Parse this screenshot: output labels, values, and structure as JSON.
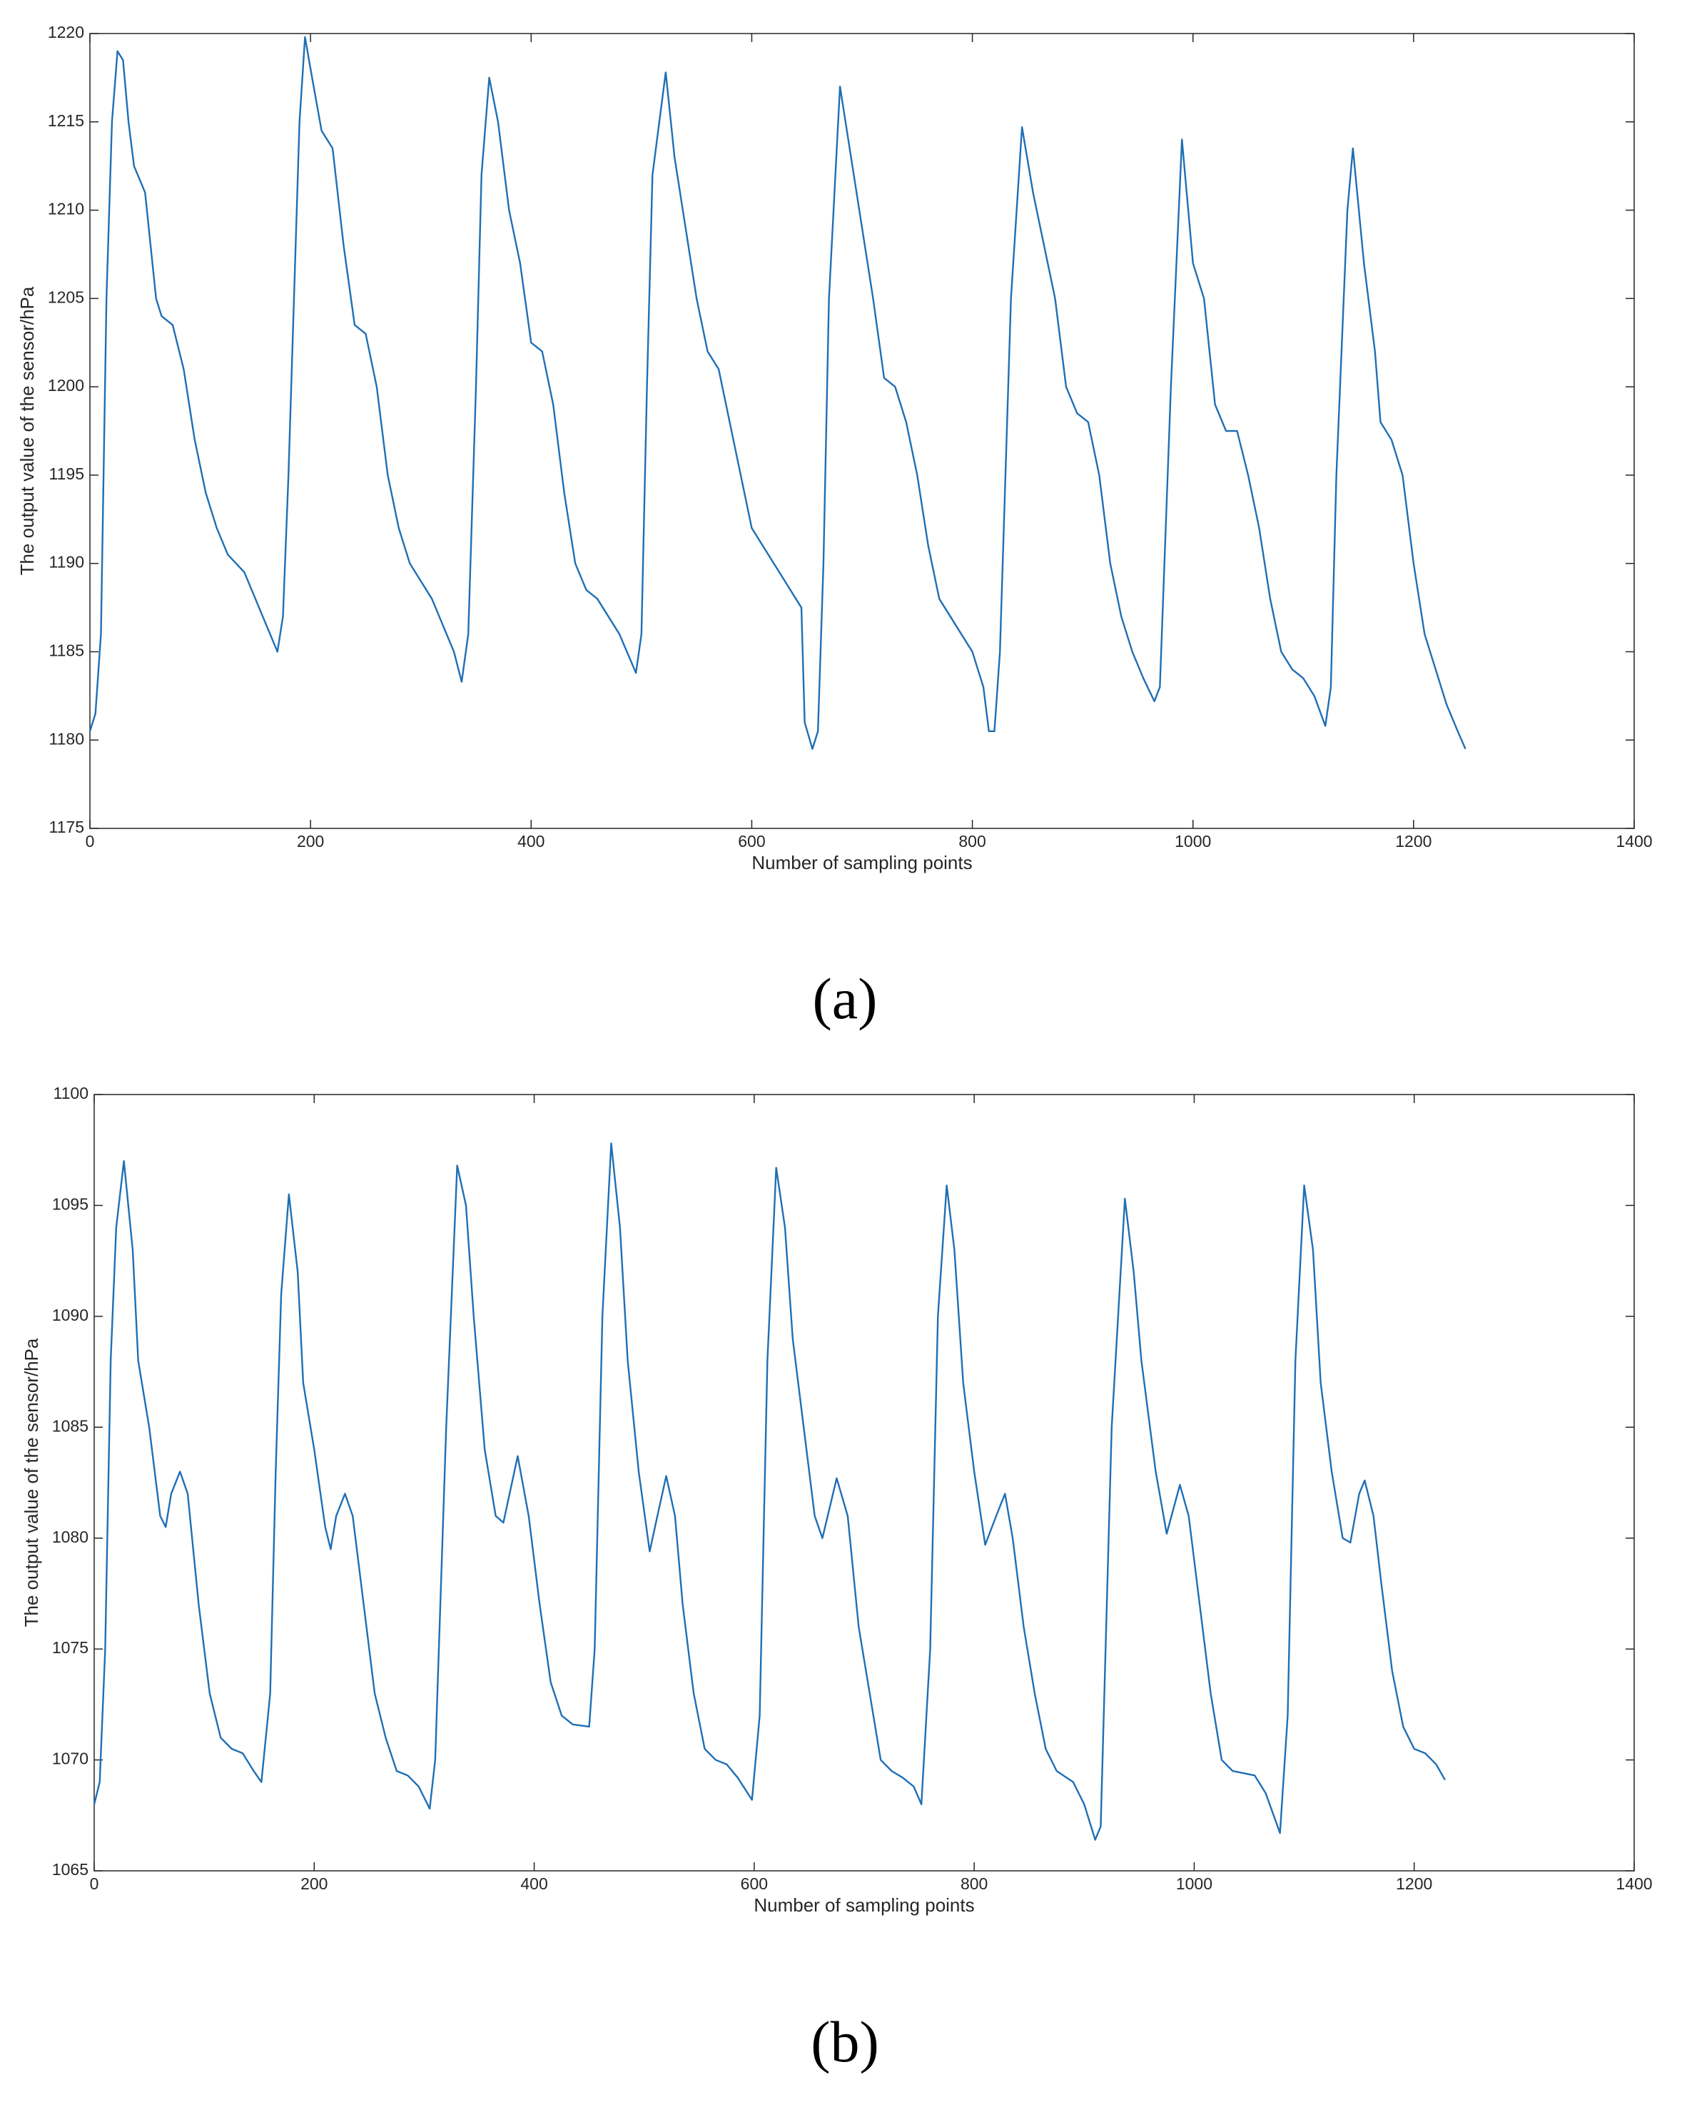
{
  "chart_data": [
    {
      "type": "line",
      "caption": "(a)",
      "xlabel": "Number of sampling points",
      "ylabel": "The output value of the sensor/hPa",
      "xlim": [
        0,
        1400
      ],
      "xticks": [
        0,
        200,
        400,
        600,
        800,
        1000,
        1200,
        1400
      ],
      "ylim": [
        1175,
        1220
      ],
      "yticks": [
        1175,
        1180,
        1185,
        1190,
        1195,
        1200,
        1205,
        1210,
        1215,
        1220
      ],
      "x": [
        0,
        5,
        10,
        15,
        20,
        25,
        30,
        35,
        40,
        50,
        55,
        60,
        65,
        75,
        85,
        95,
        105,
        115,
        125,
        140,
        150,
        160,
        170,
        175,
        180,
        185,
        190,
        195,
        200,
        210,
        220,
        230,
        240,
        250,
        260,
        270,
        280,
        290,
        300,
        310,
        320,
        330,
        337,
        343,
        350,
        355,
        362,
        370,
        380,
        390,
        400,
        410,
        420,
        430,
        440,
        450,
        460,
        470,
        480,
        495,
        500,
        505,
        510,
        522,
        530,
        540,
        550,
        560,
        570,
        580,
        590,
        600,
        610,
        620,
        630,
        640,
        645,
        648,
        655,
        660,
        665,
        670,
        680,
        690,
        700,
        710,
        720,
        730,
        740,
        750,
        760,
        770,
        780,
        790,
        800,
        810,
        815,
        820,
        825,
        835,
        845,
        855,
        865,
        875,
        885,
        895,
        905,
        915,
        925,
        935,
        945,
        955,
        965,
        970,
        980,
        990,
        1000,
        1010,
        1020,
        1030,
        1040,
        1050,
        1060,
        1070,
        1080,
        1090,
        1100,
        1110,
        1120,
        1125,
        1130,
        1140,
        1145,
        1155,
        1165,
        1170,
        1180,
        1190,
        1200,
        1210,
        1220,
        1230,
        1240,
        1247
      ],
      "series": [
        {
          "color": "#1f6fb4",
          "values": [
            1180.5,
            1181.5,
            1186,
            1205,
            1215,
            1219,
            1218.5,
            1215,
            1212.5,
            1211,
            1208,
            1205,
            1204,
            1203.5,
            1201,
            1197,
            1194,
            1192,
            1190.5,
            1189.5,
            1188,
            1186.5,
            1185,
            1187,
            1195,
            1205,
            1215,
            1219.8,
            1218,
            1214.5,
            1213.5,
            1208,
            1203.5,
            1203,
            1200,
            1195,
            1192,
            1190,
            1189,
            1188,
            1186.5,
            1185,
            1183.3,
            1186,
            1200,
            1212,
            1217.5,
            1215,
            1210,
            1207,
            1202.5,
            1202,
            1199,
            1194,
            1190,
            1188.5,
            1188,
            1187,
            1186,
            1183.8,
            1186,
            1200,
            1212,
            1217.8,
            1213,
            1209,
            1205,
            1202,
            1201,
            1198,
            1195,
            1192,
            1191,
            1190,
            1189,
            1188,
            1187.5,
            1181,
            1179.5,
            1180.5,
            1190,
            1205,
            1217,
            1213,
            1209,
            1205,
            1200.5,
            1200,
            1198,
            1195,
            1191,
            1188,
            1187,
            1186,
            1185,
            1183,
            1180.5,
            1180.5,
            1185,
            1205,
            1214.7,
            1211,
            1208,
            1205,
            1200,
            1198.5,
            1198,
            1195,
            1190,
            1187,
            1185,
            1183.5,
            1182.2,
            1183,
            1200,
            1214,
            1207,
            1205,
            1199,
            1197.5,
            1197.5,
            1195,
            1192,
            1188,
            1185,
            1184,
            1183.5,
            1182.5,
            1180.8,
            1183,
            1195,
            1210,
            1213.5,
            1207,
            1202,
            1198,
            1197,
            1195,
            1190,
            1186,
            1184,
            1182,
            1180.5,
            1179.5
          ]
        }
      ]
    },
    {
      "type": "line",
      "caption": "(b)",
      "xlabel": "Number of sampling points",
      "ylabel": "The output value of the sensor/hPa",
      "xlim": [
        0,
        1400
      ],
      "xticks": [
        0,
        200,
        400,
        600,
        800,
        1000,
        1200,
        1400
      ],
      "ylim": [
        1065,
        1100
      ],
      "yticks": [
        1065,
        1070,
        1075,
        1080,
        1085,
        1090,
        1095,
        1100
      ],
      "x": [
        0,
        5,
        10,
        15,
        20,
        27,
        35,
        40,
        50,
        60,
        65,
        70,
        78,
        85,
        95,
        105,
        115,
        125,
        135,
        145,
        152,
        160,
        165,
        170,
        177,
        185,
        190,
        200,
        210,
        215,
        220,
        228,
        235,
        245,
        255,
        265,
        275,
        285,
        295,
        305,
        310,
        320,
        330,
        338,
        345,
        355,
        365,
        372,
        385,
        395,
        405,
        415,
        425,
        435,
        450,
        455,
        462,
        470,
        478,
        485,
        495,
        505,
        512,
        520,
        528,
        535,
        545,
        555,
        565,
        575,
        585,
        598,
        605,
        612,
        620,
        628,
        635,
        645,
        655,
        662,
        675,
        685,
        695,
        705,
        715,
        725,
        735,
        745,
        752,
        760,
        767,
        775,
        782,
        790,
        800,
        810,
        820,
        828,
        835,
        845,
        855,
        865,
        875,
        890,
        900,
        910,
        915,
        925,
        937,
        945,
        952,
        965,
        975,
        987,
        995,
        1005,
        1015,
        1025,
        1035,
        1045,
        1055,
        1065,
        1078,
        1085,
        1092,
        1100,
        1108,
        1115,
        1125,
        1135,
        1142,
        1150,
        1155,
        1163,
        1170,
        1180,
        1190,
        1200,
        1210,
        1220,
        1228
      ],
      "series": [
        {
          "color": "#1f6fb4",
          "values": [
            1068,
            1069,
            1075,
            1088,
            1094,
            1097,
            1093,
            1088,
            1085,
            1081,
            1080.5,
            1082,
            1083,
            1082,
            1077,
            1073,
            1071,
            1070.5,
            1070.3,
            1069.5,
            1069,
            1073,
            1083,
            1091,
            1095.5,
            1092,
            1087,
            1084,
            1080.5,
            1079.5,
            1081,
            1082,
            1081,
            1077,
            1073,
            1071,
            1069.5,
            1069.3,
            1068.8,
            1067.8,
            1070,
            1085,
            1096.8,
            1095,
            1090,
            1084,
            1081,
            1080.7,
            1083.7,
            1081,
            1077,
            1073.5,
            1072,
            1071.6,
            1071.5,
            1075,
            1090,
            1097.8,
            1094,
            1088,
            1083,
            1079.4,
            1081,
            1082.8,
            1081,
            1077,
            1073,
            1070.5,
            1070,
            1069.8,
            1069.2,
            1068.2,
            1072,
            1088,
            1096.7,
            1094,
            1089,
            1085,
            1081,
            1080,
            1082.7,
            1081,
            1076,
            1073,
            1070,
            1069.5,
            1069.2,
            1068.8,
            1068,
            1075,
            1090,
            1095.9,
            1093,
            1087,
            1083,
            1079.7,
            1081,
            1082,
            1080,
            1076,
            1073,
            1070.5,
            1069.5,
            1069,
            1068,
            1066.4,
            1067,
            1085,
            1095.3,
            1092,
            1088,
            1083,
            1080.2,
            1082.4,
            1081,
            1077,
            1073,
            1070,
            1069.5,
            1069.4,
            1069.3,
            1068.5,
            1066.7,
            1072,
            1088,
            1095.9,
            1093,
            1087,
            1083,
            1080,
            1079.8,
            1082,
            1082.6,
            1081,
            1078,
            1074,
            1071.5,
            1070.5,
            1070.3,
            1069.8,
            1069.1
          ]
        }
      ]
    }
  ]
}
